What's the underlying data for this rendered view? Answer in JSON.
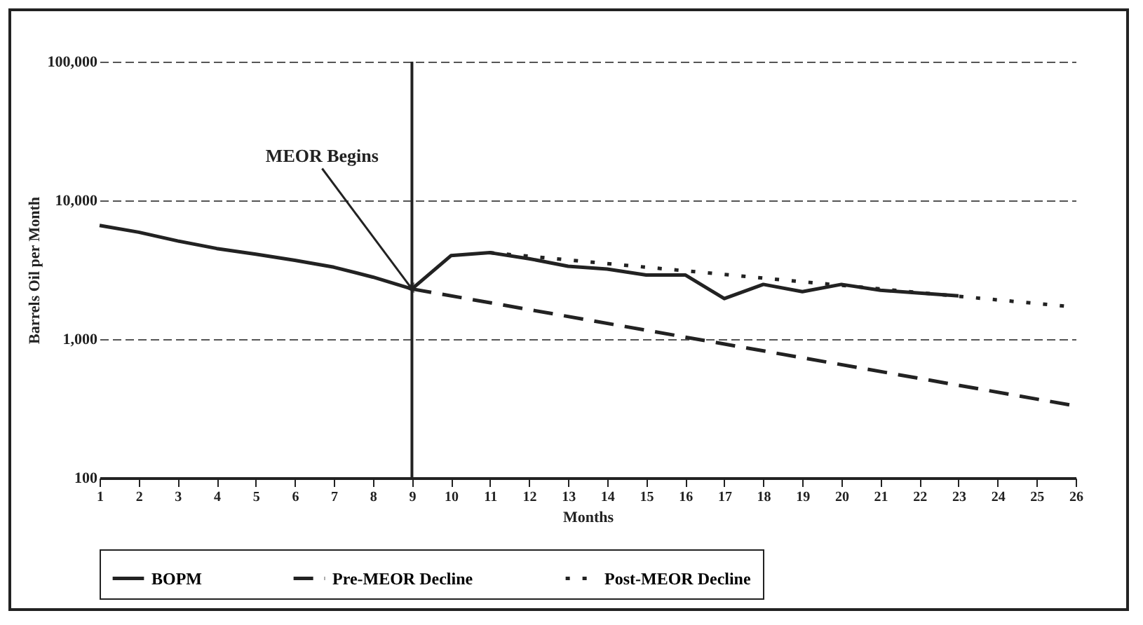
{
  "chart_data": {
    "type": "line",
    "xlabel": "Months",
    "ylabel": "Barrels Oil per Month",
    "log": "y",
    "grid": "y",
    "legend": "bottom",
    "marker": "none",
    "xlim": [
      1,
      26
    ],
    "xticks": [
      1,
      2,
      3,
      4,
      5,
      6,
      7,
      8,
      9,
      10,
      11,
      12,
      13,
      14,
      15,
      16,
      17,
      18,
      19,
      20,
      21,
      22,
      23,
      24,
      25,
      26
    ],
    "ylim": [
      100,
      100000
    ],
    "yticks": [
      100,
      {
        "value": 1000,
        "label": "1,000"
      },
      {
        "value": 10000,
        "label": "10,000"
      },
      {
        "value": 100000,
        "label": "100,000"
      }
    ],
    "series": [
      {
        "name": "BOPM",
        "color": "#222222",
        "line_style": "solid",
        "x": [
          1,
          2,
          3,
          4,
          5,
          6,
          7,
          8,
          9,
          10,
          11,
          12,
          13,
          14,
          15,
          16,
          17,
          18,
          19,
          20,
          21,
          22,
          23
        ],
        "values": [
          6600,
          5900,
          5100,
          4500,
          4100,
          3700,
          3300,
          2800,
          2300,
          4000,
          4200,
          3800,
          3350,
          3200,
          2900,
          2900,
          1960,
          2480,
          2200,
          2480,
          2250,
          2150,
          2050
        ]
      },
      {
        "name": "Pre-MEOR Decline",
        "color": "#222222",
        "line_style": "dashed",
        "x": [
          9,
          26
        ],
        "values": [
          2300,
          330
        ]
      },
      {
        "name": "Post-MEOR Decline",
        "color": "#222222",
        "line_style": "dotted",
        "x": [
          11,
          26
        ],
        "values": [
          4200,
          1700
        ]
      }
    ],
    "ref_lines": [
      {
        "axis": "x",
        "value": 9,
        "label": null,
        "color": "#222222",
        "line_style": "solid"
      }
    ],
    "annotations": [
      {
        "text": "MEOR Begins",
        "x": 9,
        "y": 2300
      }
    ]
  }
}
